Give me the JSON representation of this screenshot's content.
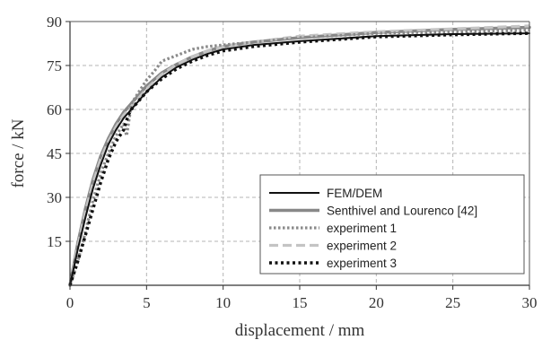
{
  "chart_data": {
    "type": "line",
    "xlabel": "displacement / mm",
    "ylabel": "force / kN",
    "xlim": [
      0,
      30
    ],
    "ylim": [
      0,
      90
    ],
    "xticks": [
      0,
      5,
      10,
      15,
      20,
      25,
      30
    ],
    "yticks": [
      15,
      30,
      45,
      60,
      75,
      90
    ],
    "grid": true,
    "legend_position": "bottom-right",
    "series": [
      {
        "name": "FEM/DEM",
        "color": "#111111",
        "style": "solid",
        "x": [
          0,
          0.5,
          1,
          1.5,
          2,
          2.5,
          3,
          3.5,
          4,
          5,
          6,
          7,
          8,
          9,
          10,
          12,
          15,
          20,
          25,
          30
        ],
        "y": [
          0,
          12,
          23,
          33,
          41,
          48,
          53,
          57,
          60,
          66,
          71,
          74.5,
          77,
          79,
          80.5,
          82,
          83.3,
          85,
          85.7,
          86
        ]
      },
      {
        "name": "Senthivel and Lourenco [42]",
        "color": "#888888",
        "style": "solid",
        "x": [
          0,
          0.5,
          1,
          1.5,
          2,
          2.5,
          3,
          3.5,
          4,
          5,
          6,
          7,
          8,
          9,
          10,
          12,
          15,
          20,
          25,
          30
        ],
        "y": [
          0,
          14,
          26,
          36,
          44,
          50,
          55,
          59,
          62,
          68,
          72.5,
          75.5,
          78,
          80,
          81.5,
          83,
          84.5,
          86.3,
          87.3,
          88
        ]
      },
      {
        "name": "experiment 1",
        "color": "#8a8a8a",
        "style": "dotted",
        "x": [
          0,
          0.5,
          1,
          1.5,
          2,
          2.5,
          3,
          3.5,
          3.7,
          3.9,
          4,
          4.5,
          5,
          5.5,
          6,
          7,
          8,
          9,
          10,
          12,
          15,
          20,
          25,
          30
        ],
        "y": [
          0,
          8,
          18,
          29,
          38,
          45,
          51,
          55,
          51,
          58,
          62,
          66,
          70,
          73,
          76.5,
          78.5,
          80.5,
          81.5,
          82,
          83,
          84.5,
          86,
          86.5,
          87
        ]
      },
      {
        "name": "experiment 2",
        "color": "#c4c4c4",
        "style": "dashed",
        "x": [
          0,
          0.5,
          1,
          1.5,
          2,
          2.5,
          3,
          3.5,
          4,
          5,
          6,
          7,
          8,
          9,
          10,
          12,
          15,
          20,
          25,
          30
        ],
        "y": [
          0,
          13,
          25,
          35,
          43,
          49,
          54,
          58,
          61,
          67,
          72,
          75.5,
          78,
          80,
          81.5,
          83,
          85,
          86.5,
          87.5,
          88.5
        ]
      },
      {
        "name": "experiment 3",
        "color": "#111111",
        "style": "dotted-bold",
        "x": [
          0,
          0.5,
          1,
          1.5,
          2,
          2.5,
          3,
          3.5,
          3.8,
          4,
          4.5,
          5,
          6,
          7,
          8,
          9,
          10,
          12,
          15,
          20,
          25,
          30
        ],
        "y": [
          0,
          8,
          17,
          26,
          35,
          43,
          49,
          53,
          58,
          60,
          63,
          66,
          70.5,
          74,
          76.5,
          78.5,
          80,
          81.5,
          83,
          84.8,
          85.5,
          86
        ]
      }
    ]
  }
}
